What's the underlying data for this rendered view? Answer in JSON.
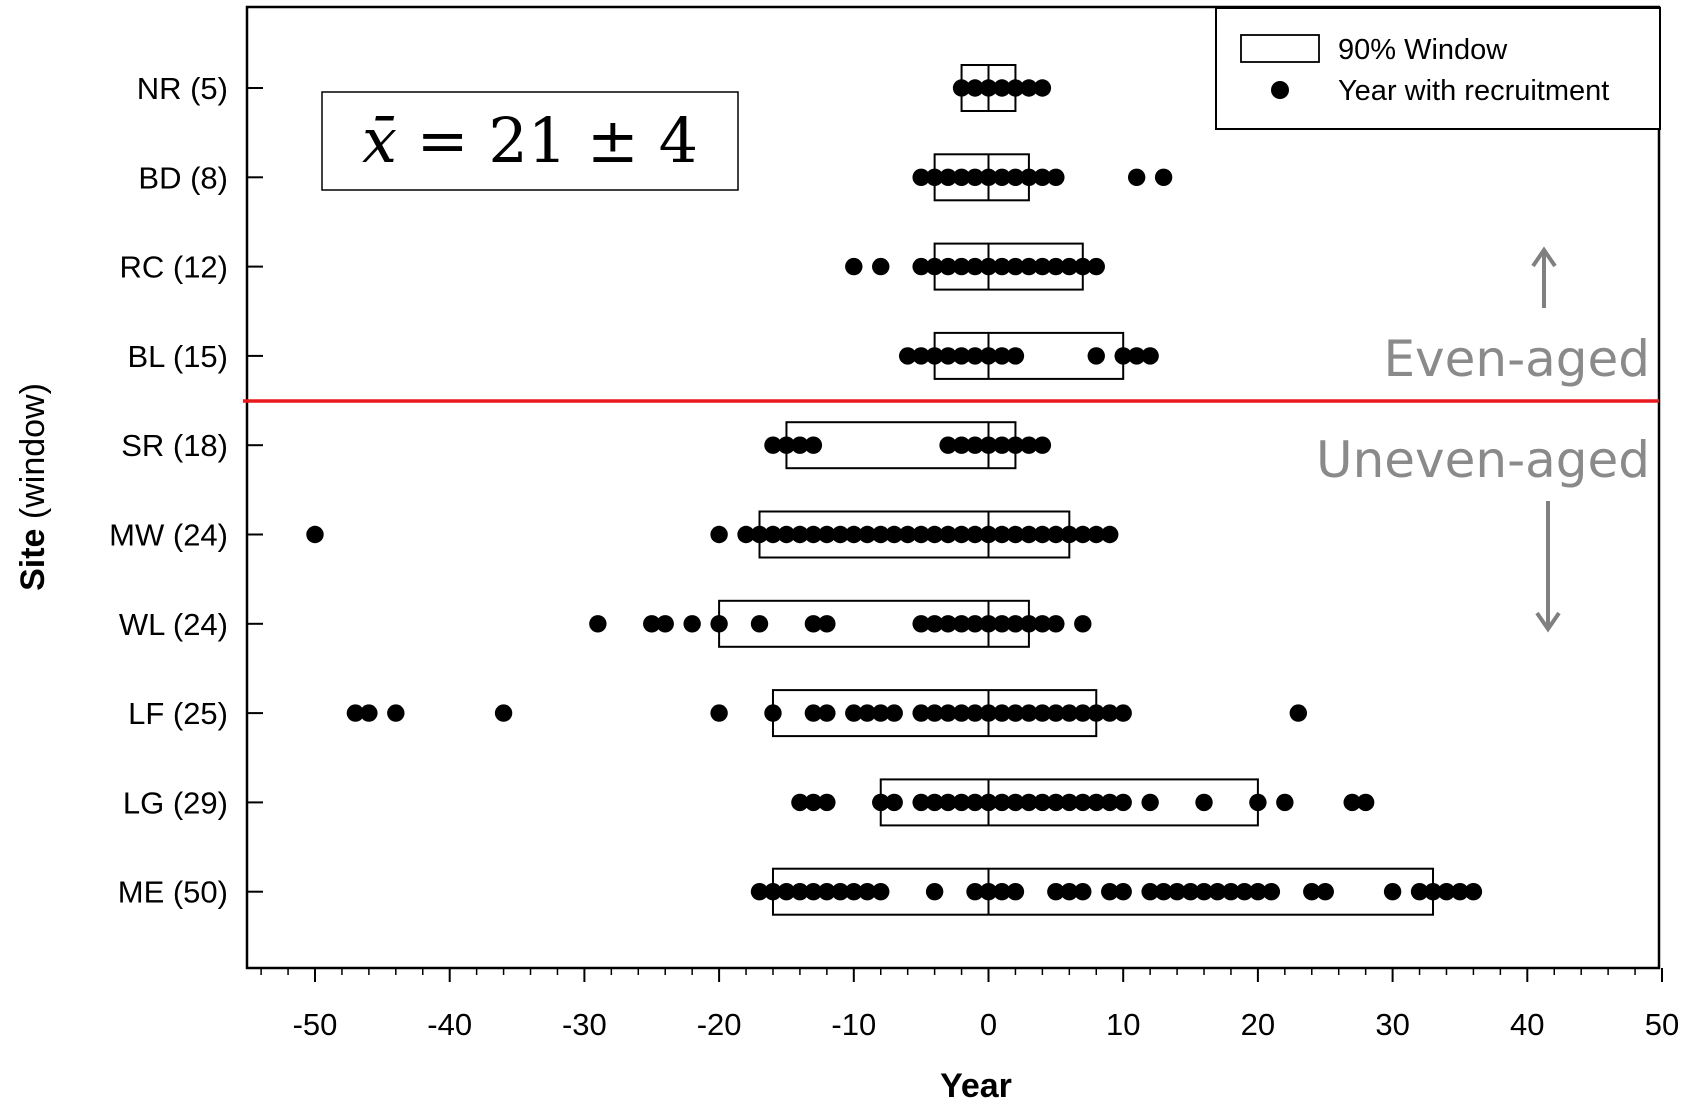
{
  "chart_data": {
    "type": "scatter",
    "xlabel": "Year",
    "ylabel_bold": "Site",
    "ylabel_rest": "(window)",
    "xlim": [
      -55,
      50
    ],
    "x_ticks": [
      -50,
      -40,
      -30,
      -20,
      -10,
      0,
      10,
      20,
      30,
      40,
      50
    ],
    "legend": {
      "position": "top-right",
      "window_label": "90% Window",
      "point_label": "Year with recruitment"
    },
    "annotation": {
      "text": "x̄ = 21 ± 4",
      "xbar": "x̄",
      "rest": "= 21 ± 4"
    },
    "groups": {
      "even_label": "Even-aged",
      "uneven_label": "Uneven-aged",
      "divider_color": "#e8191c"
    },
    "sites": [
      {
        "label": "NR (5)",
        "window": [
          -2,
          2
        ],
        "points": [
          -2,
          -1,
          0,
          1,
          2,
          3,
          4
        ]
      },
      {
        "label": "BD (8)",
        "window": [
          -4,
          3
        ],
        "points": [
          -5,
          -4,
          -3,
          -2,
          -1,
          0,
          1,
          2,
          3,
          4,
          5,
          11,
          13
        ]
      },
      {
        "label": "RC (12)",
        "window": [
          -4,
          7
        ],
        "points": [
          -10,
          -8,
          -5,
          -4,
          -3,
          -2,
          -1,
          0,
          1,
          2,
          3,
          4,
          5,
          6,
          7,
          8
        ]
      },
      {
        "label": "BL (15)",
        "window": [
          -4,
          10
        ],
        "points": [
          -6,
          -5,
          -4,
          -3,
          -2,
          -1,
          0,
          1,
          2,
          8,
          10,
          11,
          12
        ]
      },
      {
        "label": "SR (18)",
        "window": [
          -15,
          2
        ],
        "points": [
          -16,
          -15,
          -14,
          -13,
          -3,
          -2,
          -1,
          0,
          1,
          2,
          3,
          4
        ]
      },
      {
        "label": "MW (24)",
        "window": [
          -17,
          6
        ],
        "points": [
          -50,
          -20,
          -18,
          -17,
          -16,
          -15,
          -14,
          -13,
          -12,
          -11,
          -10,
          -9,
          -8,
          -7,
          -6,
          -5,
          -4,
          -3,
          -2,
          -1,
          0,
          1,
          2,
          3,
          4,
          5,
          6,
          7,
          8,
          9
        ]
      },
      {
        "label": "WL (24)",
        "window": [
          -20,
          3
        ],
        "points": [
          -29,
          -25,
          -24,
          -22,
          -20,
          -17,
          -13,
          -12,
          -5,
          -4,
          -3,
          -2,
          -1,
          0,
          1,
          2,
          3,
          4,
          5,
          7
        ]
      },
      {
        "label": "LF (25)",
        "window": [
          -16,
          8
        ],
        "points": [
          -47,
          -46,
          -44,
          -36,
          -20,
          -16,
          -13,
          -12,
          -10,
          -9,
          -8,
          -7,
          -5,
          -4,
          -3,
          -2,
          -1,
          0,
          1,
          2,
          3,
          4,
          5,
          6,
          7,
          8,
          9,
          10,
          23
        ]
      },
      {
        "label": "LG (29)",
        "window": [
          -8,
          20
        ],
        "points": [
          -14,
          -13,
          -12,
          -8,
          -7,
          -5,
          -4,
          -3,
          -2,
          -1,
          0,
          1,
          2,
          3,
          4,
          5,
          6,
          7,
          8,
          9,
          10,
          12,
          16,
          20,
          22,
          27,
          28
        ]
      },
      {
        "label": "ME (50)",
        "window": [
          -16,
          33
        ],
        "points": [
          -17,
          -16,
          -15,
          -14,
          -13,
          -12,
          -11,
          -10,
          -9,
          -8,
          -4,
          -1,
          0,
          1,
          2,
          5,
          6,
          7,
          9,
          10,
          12,
          13,
          14,
          15,
          16,
          17,
          18,
          19,
          20,
          21,
          24,
          25,
          30,
          32,
          33,
          34,
          35,
          36
        ]
      }
    ]
  }
}
